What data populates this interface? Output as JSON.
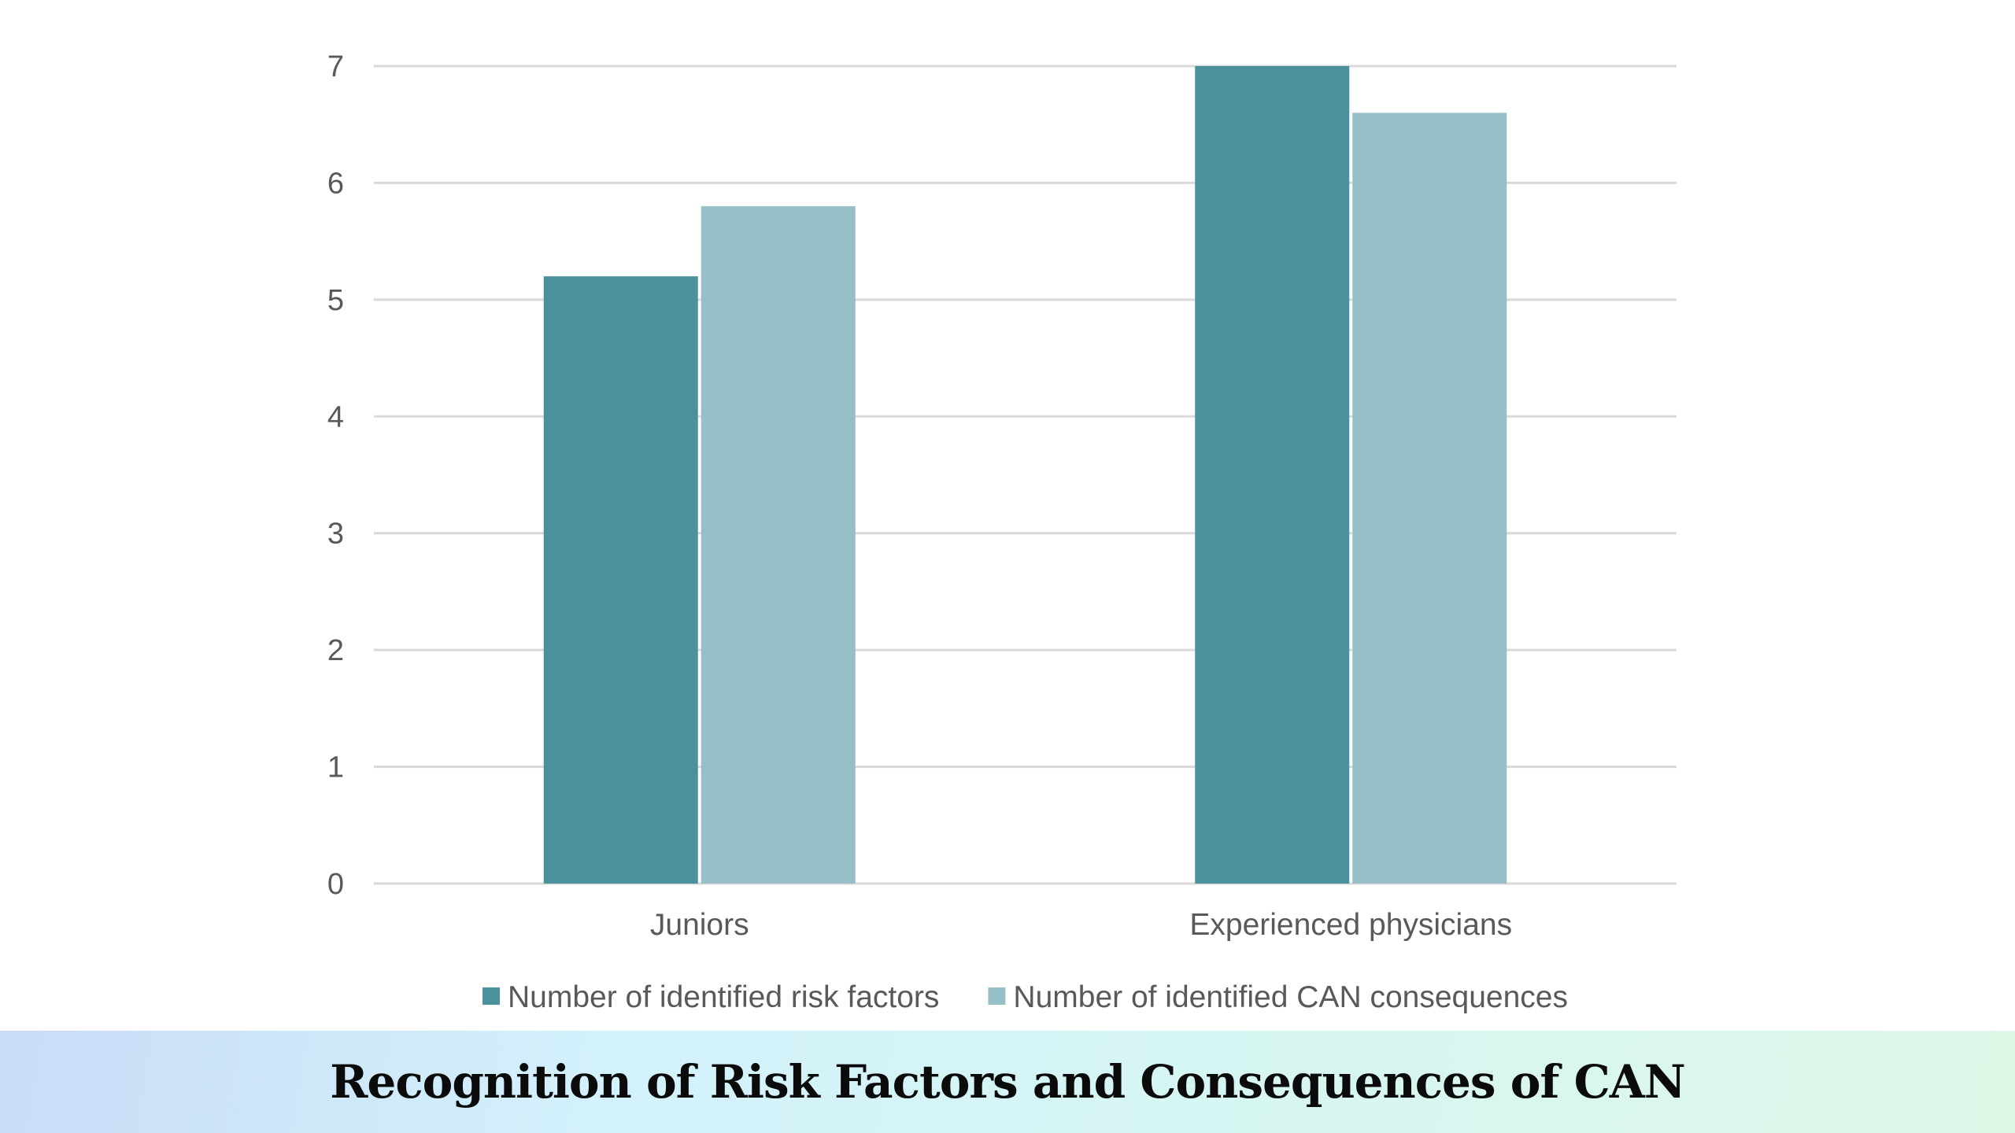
{
  "chart_data": {
    "type": "bar",
    "categories": [
      "Juniors",
      "Experienced physicians"
    ],
    "series": [
      {
        "name": "Number of identified risk factors",
        "values": [
          5.2,
          7.0
        ],
        "color": "#4b919c"
      },
      {
        "name": "Number of identified CAN consequences",
        "values": [
          5.8,
          6.6
        ],
        "color": "#97bfc8"
      }
    ],
    "ylim": [
      0,
      7
    ],
    "yticks": [
      "0",
      "1",
      "2",
      "3",
      "4",
      "5",
      "6",
      "7"
    ],
    "grid": true,
    "legend": "bottom",
    "xlabel": "",
    "ylabel": ""
  },
  "footer": {
    "title": "Recognition of Risk Factors and Consequences of CAN"
  }
}
